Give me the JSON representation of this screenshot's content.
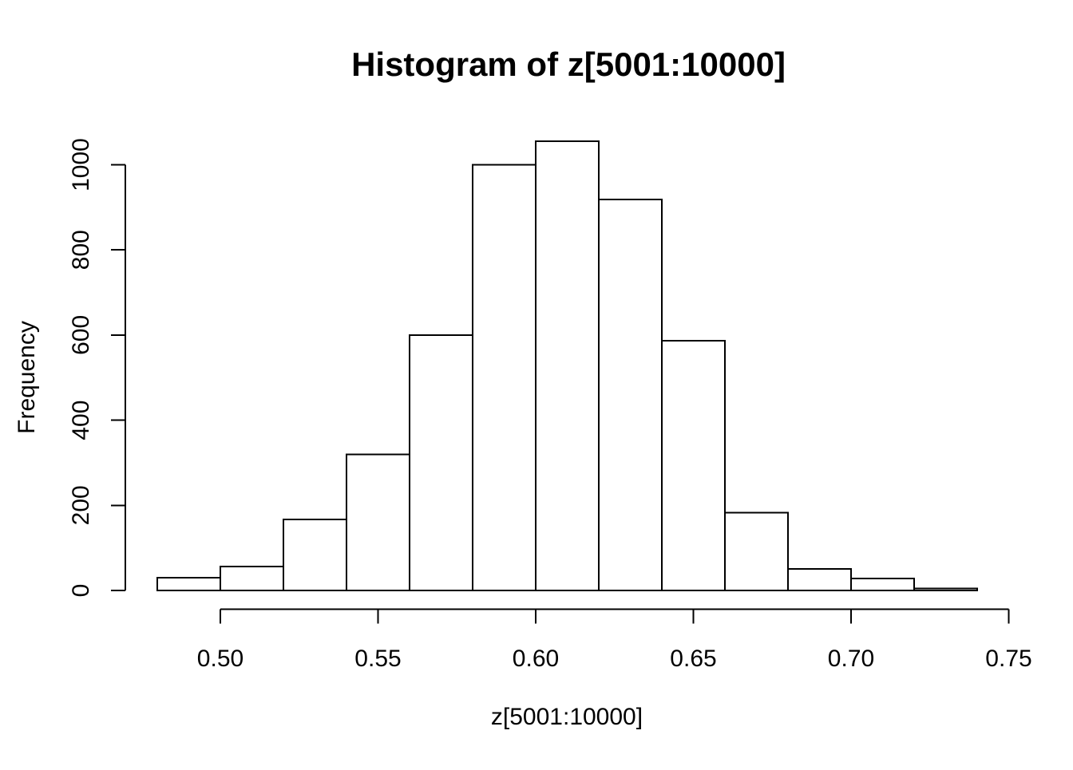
{
  "chart_data": {
    "type": "bar",
    "variant": "histogram",
    "title": "Histogram of z[5001:10000]",
    "xlabel": "z[5001:10000]",
    "ylabel": "Frequency",
    "bin_edges": [
      0.48,
      0.5,
      0.52,
      0.54,
      0.56,
      0.58,
      0.6,
      0.62,
      0.64,
      0.66,
      0.68,
      0.7,
      0.72,
      0.74
    ],
    "counts": [
      30,
      56,
      167,
      320,
      600,
      1000,
      1055,
      918,
      587,
      183,
      51,
      28,
      5
    ],
    "x_ticks": [
      {
        "value": 0.5,
        "label": "0.50"
      },
      {
        "value": 0.55,
        "label": "0.55"
      },
      {
        "value": 0.6,
        "label": "0.60"
      },
      {
        "value": 0.65,
        "label": "0.65"
      },
      {
        "value": 0.7,
        "label": "0.70"
      },
      {
        "value": 0.75,
        "label": "0.75"
      }
    ],
    "y_ticks": [
      {
        "value": 0,
        "label": "0"
      },
      {
        "value": 200,
        "label": "200"
      },
      {
        "value": 400,
        "label": "400"
      },
      {
        "value": 600,
        "label": "600"
      },
      {
        "value": 800,
        "label": "800"
      },
      {
        "value": 1000,
        "label": "1000"
      }
    ],
    "xlim": [
      0.48,
      0.75
    ],
    "ylim": [
      0,
      1055
    ],
    "grid": false,
    "legend_position": "none",
    "colors": {
      "bar_fill": "#ffffff",
      "bar_stroke": "#000000",
      "axis": "#000000",
      "text": "#000000",
      "background": "#ffffff"
    }
  }
}
